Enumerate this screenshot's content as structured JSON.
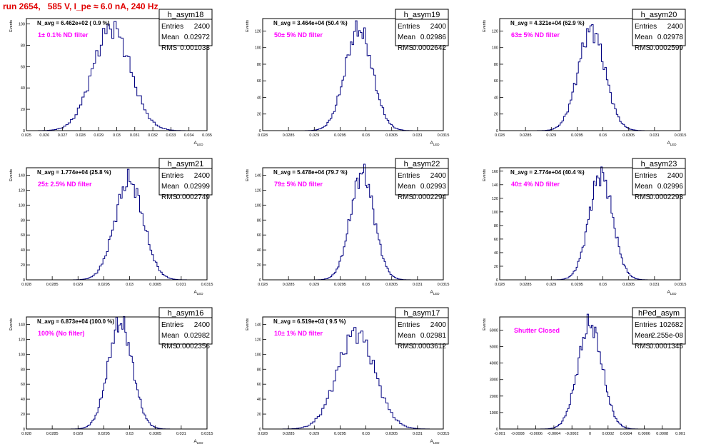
{
  "page_title": "run 2654,   585 V, I_pe ≈ 6.0 nA, 240 Hz",
  "colors": {
    "histogram": "#000080",
    "annotation": "#ff00ff",
    "title": "#e00000",
    "frame": "#000000"
  },
  "stat_labels": {
    "entries": "Entries",
    "mean": "Mean",
    "rms": "RMS"
  },
  "chart_data": [
    {
      "type": "histogram",
      "name": "h_asym18",
      "entries": "2400",
      "mean": "0.02972",
      "rms": "0.001033",
      "navg": "N_avg = 6.462e+02 ( 0.9 %)",
      "note": "1± 0.1% ND filter",
      "ylabel": "Events",
      "xlabel": "A_LED",
      "xlim": [
        0.025,
        0.035
      ],
      "ylim": [
        0,
        105
      ],
      "xticks": [
        0.025,
        0.026,
        0.027,
        0.028,
        0.029,
        0.03,
        0.031,
        0.032,
        0.033,
        0.034,
        0.035
      ],
      "xticklabels": [
        "0.025",
        "0.026",
        "0.027",
        "0.028",
        "0.029",
        "0.03",
        "0.031",
        "0.032",
        "0.033",
        "0.034",
        "0.035"
      ],
      "yticks": [
        0,
        20,
        40,
        60,
        80,
        100
      ],
      "yticklabels": [
        "0",
        "20",
        "40",
        "60",
        "80",
        "100"
      ],
      "mu": 0.02972,
      "sigma": 0.001033,
      "peak": 97
    },
    {
      "type": "histogram",
      "name": "h_asym19",
      "entries": "2400",
      "mean": "0.02986",
      "rms": "0.0002642",
      "navg": "N_avg = 3.464e+04 (50.4 %)",
      "note": "50± 5% ND filter",
      "ylabel": "Events",
      "xlabel": "A_LED",
      "xlim": [
        0.028,
        0.0315
      ],
      "ylim": [
        0,
        135
      ],
      "xticks": [
        0.028,
        0.0285,
        0.029,
        0.0295,
        0.03,
        0.0305,
        0.031,
        0.0315
      ],
      "xticklabels": [
        "0.028",
        "0.0285",
        "0.029",
        "0.0295",
        "0.03",
        "0.0305",
        "0.031",
        "0.0315"
      ],
      "yticks": [
        0,
        20,
        40,
        60,
        80,
        100,
        120
      ],
      "yticklabels": [
        "0",
        "20",
        "40",
        "60",
        "80",
        "100",
        "120"
      ],
      "mu": 0.02986,
      "sigma": 0.0002642,
      "peak": 122
    },
    {
      "type": "histogram",
      "name": "h_asym20",
      "entries": "2400",
      "mean": "0.02978",
      "rms": "0.0002599",
      "navg": "N_avg = 4.321e+04 (62.9 %)",
      "note": "63± 5% ND filter",
      "ylabel": "Events",
      "xlabel": "A_LED",
      "xlim": [
        0.028,
        0.0315
      ],
      "ylim": [
        0,
        135
      ],
      "xticks": [
        0.028,
        0.0285,
        0.029,
        0.0295,
        0.03,
        0.0305,
        0.031,
        0.0315
      ],
      "xticklabels": [
        "0.028",
        "0.0285",
        "0.029",
        "0.0295",
        "0.03",
        "0.0305",
        "0.031",
        "0.0315"
      ],
      "yticks": [
        0,
        20,
        40,
        60,
        80,
        100,
        120
      ],
      "yticklabels": [
        "0",
        "20",
        "40",
        "60",
        "80",
        "100",
        "120"
      ],
      "mu": 0.02978,
      "sigma": 0.0002599,
      "peak": 122
    },
    {
      "type": "histogram",
      "name": "h_asym21",
      "entries": "2400",
      "mean": "0.02999",
      "rms": "0.0002749",
      "navg": "N_avg = 1.774e+04 (25.8 %)",
      "note": "25± 2.5% ND filter",
      "ylabel": "Events",
      "xlabel": "A_LED",
      "xlim": [
        0.028,
        0.0315
      ],
      "ylim": [
        0,
        150
      ],
      "xticks": [
        0.028,
        0.0285,
        0.029,
        0.0295,
        0.03,
        0.0305,
        0.031,
        0.0315
      ],
      "xticklabels": [
        "0.028",
        "0.0285",
        "0.029",
        "0.0295",
        "0.03",
        "0.0305",
        "0.031",
        "0.0315"
      ],
      "yticks": [
        0,
        20,
        40,
        60,
        80,
        100,
        120,
        140
      ],
      "yticklabels": [
        "0",
        "20",
        "40",
        "60",
        "80",
        "100",
        "120",
        "140"
      ],
      "mu": 0.02999,
      "sigma": 0.0002749,
      "peak": 133
    },
    {
      "type": "histogram",
      "name": "h_asym22",
      "entries": "2400",
      "mean": "0.02993",
      "rms": "0.0002294",
      "navg": "N_avg = 5.478e+04 (79.7 %)",
      "note": "79± 5% ND filter",
      "ylabel": "Events",
      "xlabel": "A_LED",
      "xlim": [
        0.028,
        0.0315
      ],
      "ylim": [
        0,
        150
      ],
      "xticks": [
        0.028,
        0.0285,
        0.029,
        0.0295,
        0.03,
        0.0305,
        0.031,
        0.0315
      ],
      "xticklabels": [
        "0.028",
        "0.0285",
        "0.029",
        "0.0295",
        "0.03",
        "0.0305",
        "0.031",
        "0.0315"
      ],
      "yticks": [
        0,
        20,
        40,
        60,
        80,
        100,
        120,
        140
      ],
      "yticklabels": [
        "0",
        "20",
        "40",
        "60",
        "80",
        "100",
        "120",
        "140"
      ],
      "mu": 0.02993,
      "sigma": 0.0002294,
      "peak": 143
    },
    {
      "type": "histogram",
      "name": "h_asym23",
      "entries": "2400",
      "mean": "0.02996",
      "rms": "0.0002293",
      "navg": "N_avg = 2.774e+04 (40.4 %)",
      "note": "40± 4% ND filter",
      "ylabel": "Events",
      "xlabel": "A_LED",
      "xlim": [
        0.028,
        0.0315
      ],
      "ylim": [
        0,
        165
      ],
      "xticks": [
        0.028,
        0.0285,
        0.029,
        0.0295,
        0.03,
        0.0305,
        0.031,
        0.0315
      ],
      "xticklabels": [
        "0.028",
        "0.0285",
        "0.029",
        "0.0295",
        "0.03",
        "0.0305",
        "0.031",
        "0.0315"
      ],
      "yticks": [
        0,
        20,
        40,
        60,
        80,
        100,
        120,
        140,
        160
      ],
      "yticklabels": [
        "0",
        "20",
        "40",
        "60",
        "80",
        "100",
        "120",
        "140",
        "160"
      ],
      "mu": 0.02996,
      "sigma": 0.0002293,
      "peak": 155
    },
    {
      "type": "histogram",
      "name": "h_asym16",
      "entries": "2400",
      "mean": "0.02982",
      "rms": "0.0002356",
      "navg": "N_avg = 6.873e+04 (100.0 %)",
      "note": "100% (No filter)",
      "ylabel": "Events",
      "xlabel": "A_LED",
      "xlim": [
        0.028,
        0.0315
      ],
      "ylim": [
        0,
        150
      ],
      "xticks": [
        0.028,
        0.0285,
        0.029,
        0.0295,
        0.03,
        0.0305,
        0.031,
        0.0315
      ],
      "xticklabels": [
        "0.028",
        "0.0285",
        "0.029",
        "0.0295",
        "0.03",
        "0.0305",
        "0.031",
        "0.0315"
      ],
      "yticks": [
        0,
        20,
        40,
        60,
        80,
        100,
        120,
        140
      ],
      "yticklabels": [
        "0",
        "20",
        "40",
        "60",
        "80",
        "100",
        "120",
        "140"
      ],
      "mu": 0.02982,
      "sigma": 0.0002356,
      "peak": 142
    },
    {
      "type": "histogram",
      "name": "h_asym17",
      "entries": "2400",
      "mean": "0.02981",
      "rms": "0.0003612",
      "navg": "N_avg = 6.519e+03 ( 9.5 %)",
      "note": "10± 1% ND filter",
      "ylabel": "Events",
      "xlabel": "A_LED",
      "xlim": [
        0.028,
        0.0315
      ],
      "ylim": [
        0,
        150
      ],
      "xticks": [
        0.028,
        0.0285,
        0.029,
        0.0295,
        0.03,
        0.0305,
        0.031,
        0.0315
      ],
      "xticklabels": [
        "0.028",
        "0.0285",
        "0.029",
        "0.0295",
        "0.03",
        "0.0305",
        "0.031",
        "0.0315"
      ],
      "yticks": [
        0,
        20,
        40,
        60,
        80,
        100,
        120,
        140
      ],
      "yticklabels": [
        "0",
        "20",
        "40",
        "60",
        "80",
        "100",
        "120",
        "140"
      ],
      "mu": 0.02981,
      "sigma": 0.0003612,
      "peak": 130
    },
    {
      "type": "histogram",
      "name": "hPed_asym",
      "entries": "102682",
      "mean": "-2.255e-08",
      "rms": "0.0001345",
      "navg": "",
      "note": "Shutter Closed",
      "ylabel": "Events",
      "xlabel": "",
      "xlim": [
        -0.001,
        0.001
      ],
      "ylim": [
        0,
        6800
      ],
      "xticks": [
        -0.001,
        -0.0008,
        -0.0006,
        -0.0004,
        -0.0002,
        0,
        0.0002,
        0.0004,
        0.0006,
        0.0008,
        0.001
      ],
      "xticklabels": [
        "-0.001",
        "-0.0008",
        "-0.0006",
        "-0.0004",
        "-0.0002",
        "0",
        "0.0002",
        "0.0004",
        "0.0006",
        "0.0008",
        "0.001"
      ],
      "yticks": [
        0,
        1000,
        2000,
        3000,
        4000,
        5000,
        6000
      ],
      "yticklabels": [
        "0",
        "1000",
        "2000",
        "3000",
        "4000",
        "5000",
        "6000"
      ],
      "mu": 0,
      "sigma": 0.0001345,
      "peak": 6350
    }
  ]
}
